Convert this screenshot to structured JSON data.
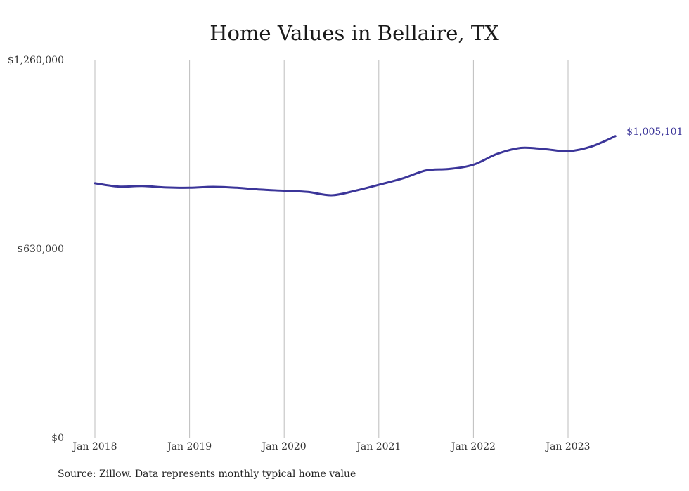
{
  "chart_data": {
    "type": "line",
    "title": "Home Values in Bellaire, TX",
    "xlabel": "",
    "ylabel": "",
    "x_ticks": [
      "Jan 2018",
      "Jan 2019",
      "Jan 2020",
      "Jan 2021",
      "Jan 2022",
      "Jan 2023"
    ],
    "y_ticks": [
      "$0",
      "$630,000",
      "$1,260,000"
    ],
    "y_tick_values": [
      0,
      630000,
      1260000
    ],
    "ylim": [
      0,
      1260000
    ],
    "x_range": [
      "2018-01",
      "2023-07"
    ],
    "grid": "vertical",
    "end_label": "$1,005,101",
    "series": [
      {
        "color": "#3b3599",
        "x": [
          "2018-01",
          "2018-04",
          "2018-07",
          "2018-10",
          "2019-01",
          "2019-04",
          "2019-07",
          "2019-10",
          "2020-01",
          "2020-04",
          "2020-07",
          "2020-10",
          "2021-01",
          "2021-04",
          "2021-07",
          "2021-10",
          "2022-01",
          "2022-04",
          "2022-07",
          "2022-10",
          "2023-01",
          "2023-04",
          "2023-07"
        ],
        "values": [
          848000,
          837000,
          839000,
          834000,
          833000,
          836000,
          833000,
          827000,
          823000,
          819000,
          808000,
          823000,
          843000,
          864000,
          891000,
          896000,
          910000,
          946000,
          966000,
          962000,
          955000,
          971000,
          1005101
        ]
      }
    ]
  },
  "source_note": "Source: Zillow. Data represents monthly typical home value"
}
